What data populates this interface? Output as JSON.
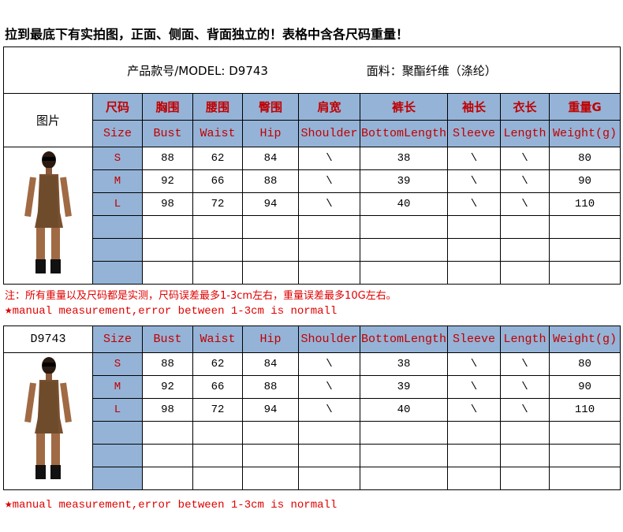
{
  "title": "拉到最底下有实拍图，正面、侧面、背面独立的！表格中含各尺码重量！",
  "model_label": "产品款号/MODEL: D9743",
  "fabric_label": "面料：聚酯纤维（涤纶）",
  "picture_label": "图片",
  "headers_cn": [
    "尺码",
    "胸围",
    "腰围",
    "臀围",
    "肩宽",
    "裤长",
    "袖长",
    "衣长",
    "重量G"
  ],
  "headers_en": [
    "Size",
    "Bust",
    "Waist",
    "Hip",
    "Shoulder",
    "BottomLength",
    "Sleeve",
    "Length",
    "Weight(g)"
  ],
  "rows": [
    [
      "S",
      "88",
      "62",
      "84",
      "\\",
      "38",
      "\\",
      "\\",
      "80"
    ],
    [
      "M",
      "92",
      "66",
      "88",
      "\\",
      "39",
      "\\",
      "\\",
      "90"
    ],
    [
      "L",
      "98",
      "72",
      "94",
      "\\",
      "40",
      "\\",
      "\\",
      "110"
    ]
  ],
  "note_cn": "注：所有重量以及尺码都是实测，尺码误差最多1-3cm左右，重量误差最多10G左右。",
  "note_en": "manual measurement,error between 1-3cm is normall",
  "table2_model": "D9743",
  "colors": {
    "header_bg": "#95b3d7",
    "header_text": "#c00000",
    "note": "#e00000"
  }
}
